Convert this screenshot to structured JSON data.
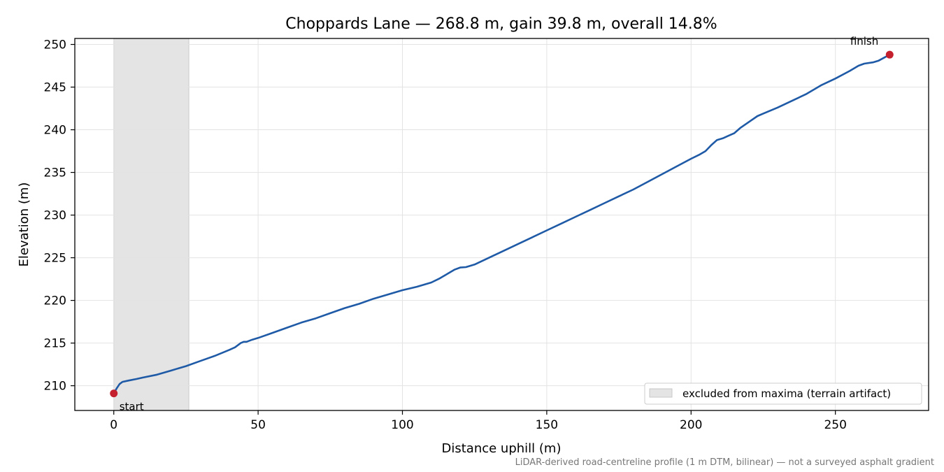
{
  "chart_data": {
    "type": "line",
    "title": "Choppards Lane — 268.8 m, gain 39.8 m, overall 14.8%",
    "xlabel": "Distance uphill (m)",
    "ylabel": "Elevation (m)",
    "xlim": [
      -13.5,
      282.3
    ],
    "ylim": [
      207.1,
      250.7
    ],
    "x_ticks": [
      0,
      50,
      100,
      150,
      200,
      250
    ],
    "y_ticks": [
      210,
      215,
      220,
      225,
      230,
      235,
      240,
      245,
      250
    ],
    "grid": true,
    "series": [
      {
        "color": "#1f5aa6",
        "points": [
          [
            0,
            209.1
          ],
          [
            1,
            209.7
          ],
          [
            2,
            210.2
          ],
          [
            3,
            210.45
          ],
          [
            5,
            210.6
          ],
          [
            8,
            210.8
          ],
          [
            10,
            210.95
          ],
          [
            15,
            211.3
          ],
          [
            20,
            211.8
          ],
          [
            25,
            212.3
          ],
          [
            30,
            212.9
          ],
          [
            35,
            213.5
          ],
          [
            40,
            214.2
          ],
          [
            42,
            214.5
          ],
          [
            44,
            215.0
          ],
          [
            45,
            215.15
          ],
          [
            46,
            215.15
          ],
          [
            48,
            215.4
          ],
          [
            50,
            215.6
          ],
          [
            55,
            216.2
          ],
          [
            60,
            216.8
          ],
          [
            65,
            217.4
          ],
          [
            70,
            217.9
          ],
          [
            75,
            218.5
          ],
          [
            80,
            219.1
          ],
          [
            85,
            219.6
          ],
          [
            90,
            220.2
          ],
          [
            95,
            220.7
          ],
          [
            100,
            221.2
          ],
          [
            105,
            221.6
          ],
          [
            110,
            222.1
          ],
          [
            113,
            222.6
          ],
          [
            116,
            223.2
          ],
          [
            118,
            223.6
          ],
          [
            120,
            223.85
          ],
          [
            122,
            223.9
          ],
          [
            125,
            224.2
          ],
          [
            130,
            225.0
          ],
          [
            135,
            225.8
          ],
          [
            140,
            226.6
          ],
          [
            145,
            227.4
          ],
          [
            150,
            228.2
          ],
          [
            155,
            229.0
          ],
          [
            160,
            229.8
          ],
          [
            165,
            230.6
          ],
          [
            170,
            231.4
          ],
          [
            175,
            232.2
          ],
          [
            180,
            233.0
          ],
          [
            185,
            233.9
          ],
          [
            190,
            234.8
          ],
          [
            195,
            235.7
          ],
          [
            200,
            236.6
          ],
          [
            203,
            237.1
          ],
          [
            205,
            237.5
          ],
          [
            207,
            238.2
          ],
          [
            209,
            238.8
          ],
          [
            211,
            239.0
          ],
          [
            213,
            239.3
          ],
          [
            215,
            239.6
          ],
          [
            217,
            240.2
          ],
          [
            220,
            240.9
          ],
          [
            223,
            241.6
          ],
          [
            225,
            241.9
          ],
          [
            230,
            242.6
          ],
          [
            235,
            243.4
          ],
          [
            240,
            244.2
          ],
          [
            245,
            245.2
          ],
          [
            250,
            246.0
          ],
          [
            255,
            246.9
          ],
          [
            258,
            247.5
          ],
          [
            260,
            247.75
          ],
          [
            263,
            247.9
          ],
          [
            265,
            248.1
          ],
          [
            268.8,
            248.8
          ]
        ]
      }
    ],
    "markers": [
      {
        "x": 0,
        "y": 209.1,
        "label": "start",
        "color": "#c4202e"
      },
      {
        "x": 268.8,
        "y": 248.8,
        "label": "finish",
        "color": "#c4202e"
      }
    ],
    "shaded_region": {
      "x0": 0,
      "x1": 26,
      "color": "#e4e4e4",
      "label": "excluded from maxima (terrain artifact)"
    },
    "legend_position": "bottom-right",
    "footnote": "LiDAR-derived road-centreline profile (1 m DTM, bilinear) — not a surveyed asphalt gradient"
  }
}
